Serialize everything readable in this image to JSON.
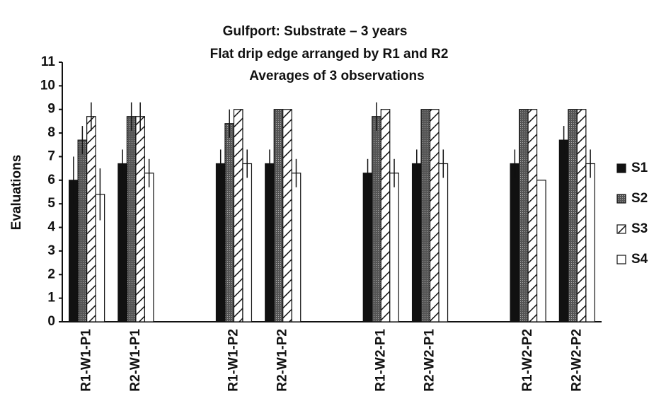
{
  "chart_data": {
    "type": "bar",
    "title": "Gulfport: Substrate – 3 years",
    "subtitle": [
      "Flat drip edge arranged by R1 and R2",
      "Averages of 3 observations"
    ],
    "y_label": "Evaluations",
    "categories": [
      "R1-W1-P1",
      "R2-W1-P1",
      null,
      "R1-W1-P2",
      "R2-W1-P2",
      null,
      "R1-W2-P1",
      "R2-W2-P1",
      null,
      "R1-W2-P2",
      "R2-W2-P2"
    ],
    "series": [
      {
        "name": "S1",
        "color": "#111111",
        "pattern": "solid",
        "values": [
          6.0,
          6.7,
          null,
          6.7,
          6.7,
          null,
          6.3,
          6.7,
          null,
          6.7,
          7.7
        ],
        "errors": [
          1.0,
          0.6,
          null,
          0.6,
          0.6,
          null,
          0.6,
          0.6,
          null,
          0.6,
          0.6
        ]
      },
      {
        "name": "S2",
        "color": "#555555",
        "pattern": "dots",
        "values": [
          7.7,
          8.7,
          null,
          8.4,
          9.0,
          null,
          8.7,
          9.0,
          null,
          9.0,
          9.0
        ],
        "errors": [
          0.6,
          0.6,
          null,
          0.6,
          0,
          null,
          0.6,
          0,
          null,
          0,
          0
        ]
      },
      {
        "name": "S3",
        "color": "#111111",
        "pattern": "hatch",
        "values": [
          8.7,
          8.7,
          null,
          9.0,
          9.0,
          null,
          9.0,
          9.0,
          null,
          9.0,
          9.0
        ],
        "errors": [
          0.6,
          0.6,
          null,
          0,
          0,
          null,
          0,
          0,
          null,
          0,
          0
        ]
      },
      {
        "name": "S4",
        "color": "#ffffff",
        "pattern": "solid",
        "values": [
          5.4,
          6.3,
          null,
          6.7,
          6.3,
          null,
          6.3,
          6.7,
          null,
          6.0,
          6.7
        ],
        "errors": [
          1.1,
          0.6,
          null,
          0.6,
          0.6,
          null,
          0.6,
          0.6,
          null,
          0,
          0.6
        ]
      }
    ],
    "ylim": [
      0,
      11
    ],
    "yticks": [
      0,
      1,
      2,
      3,
      4,
      5,
      6,
      7,
      8,
      9,
      10,
      11
    ],
    "legend": "right"
  }
}
